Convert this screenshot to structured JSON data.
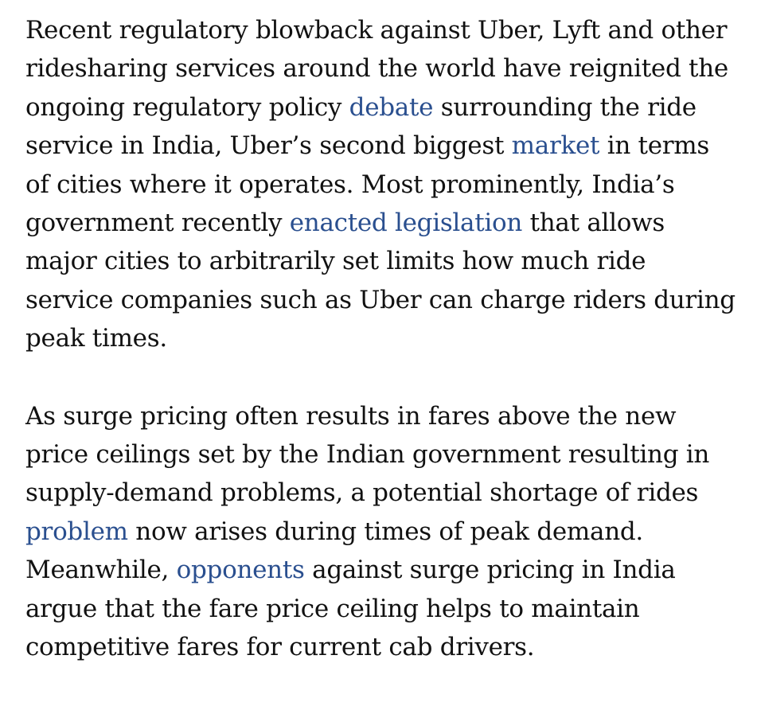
{
  "article": {
    "paragraph1": {
      "lines": [
        [
          "Recent regulatory blowback against Uber, Lyft and other"
        ],
        [
          "ridesharing services around the world have reignited the"
        ],
        [
          "ongoing regulatory policy ",
          "debate",
          " surrounding the ride"
        ],
        [
          "service in India, Uber’s second biggest ",
          "market",
          " in terms"
        ],
        [
          "of cities where it operates. Most prominently, India’s"
        ],
        [
          "government recently ",
          "enacted legislation",
          " that allows"
        ],
        [
          "major cities to arbitrarily set limits how much ride"
        ],
        [
          "service companies such as Uber can charge riders during"
        ],
        [
          "peak times."
        ]
      ]
    },
    "paragraph2": {
      "lines": [
        [
          "As surge pricing often results in fares above the new"
        ],
        [
          "price ceilings set by the Indian government resulting in"
        ],
        [
          "supply-demand problems, a potential shortage of rides"
        ],
        [
          "",
          "problem",
          " now arises during times of peak demand."
        ],
        [
          "Meanwhile, ",
          "opponents",
          " against surge pricing in India"
        ],
        [
          "argue that the fare price ceiling helps to maintain"
        ],
        [
          "competitive fares for current cab drivers."
        ]
      ]
    },
    "links": {
      "debate": "debate",
      "market": "market",
      "enacted_legislation": "enacted legislation",
      "problem": "problem",
      "opponents": "opponents"
    },
    "colors": {
      "text": "#111111",
      "link": "#2a4f8f",
      "background": "#ffffff"
    }
  }
}
